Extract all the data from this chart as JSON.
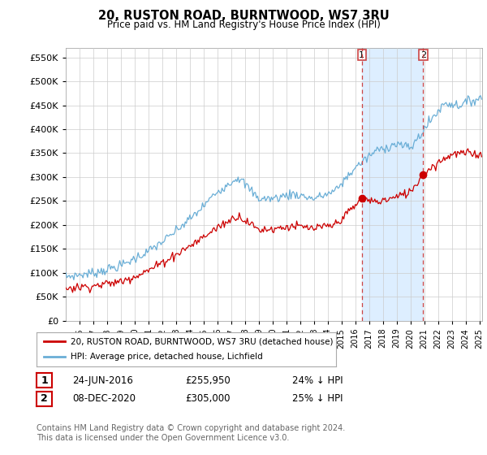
{
  "title": "20, RUSTON ROAD, BURNTWOOD, WS7 3RU",
  "subtitle": "Price paid vs. HM Land Registry's House Price Index (HPI)",
  "ylim": [
    0,
    570000
  ],
  "yticks": [
    0,
    50000,
    100000,
    150000,
    200000,
    250000,
    300000,
    350000,
    400000,
    450000,
    500000,
    550000
  ],
  "xlim_start": 1995.0,
  "xlim_end": 2025.2,
  "hpi_color": "#6aaed6",
  "price_color": "#cc0000",
  "shade_color": "#ddeeff",
  "purchase1_x": 2016.47,
  "purchase1_y": 255950,
  "purchase2_x": 2020.92,
  "purchase2_y": 305000,
  "legend_line1": "20, RUSTON ROAD, BURNTWOOD, WS7 3RU (detached house)",
  "legend_line2": "HPI: Average price, detached house, Lichfield",
  "annotation1_label": "1",
  "annotation1_date": "24-JUN-2016",
  "annotation1_price": "£255,950",
  "annotation1_hpi": "24% ↓ HPI",
  "annotation2_label": "2",
  "annotation2_date": "08-DEC-2020",
  "annotation2_price": "£305,000",
  "annotation2_hpi": "25% ↓ HPI",
  "footer": "Contains HM Land Registry data © Crown copyright and database right 2024.\nThis data is licensed under the Open Government Licence v3.0.",
  "background_color": "#ffffff",
  "grid_color": "#cccccc",
  "xtick_start": 1996,
  "xtick_end": 2025
}
